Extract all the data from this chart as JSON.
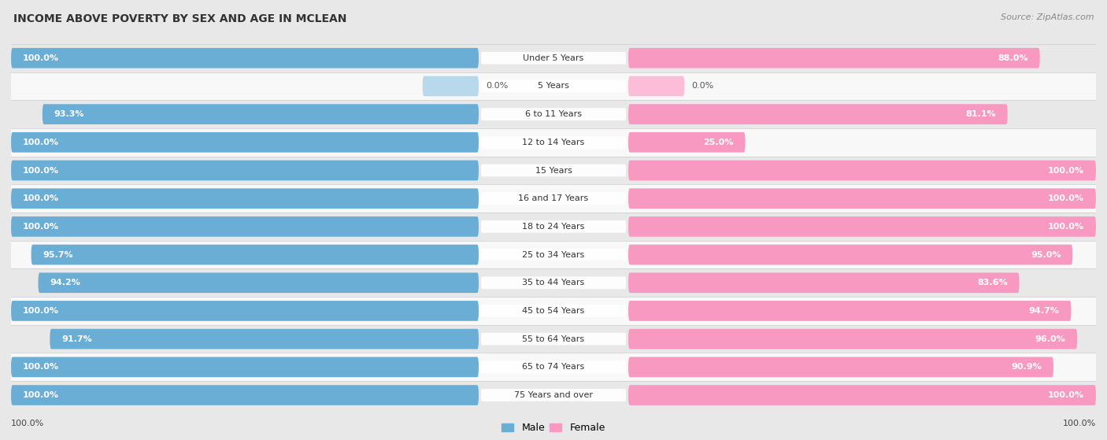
{
  "title": "INCOME ABOVE POVERTY BY SEX AND AGE IN MCLEAN",
  "source": "Source: ZipAtlas.com",
  "categories": [
    "Under 5 Years",
    "5 Years",
    "6 to 11 Years",
    "12 to 14 Years",
    "15 Years",
    "16 and 17 Years",
    "18 to 24 Years",
    "25 to 34 Years",
    "35 to 44 Years",
    "45 to 54 Years",
    "55 to 64 Years",
    "65 to 74 Years",
    "75 Years and over"
  ],
  "male": [
    100.0,
    0.0,
    93.3,
    100.0,
    100.0,
    100.0,
    100.0,
    95.7,
    94.2,
    100.0,
    91.7,
    100.0,
    100.0
  ],
  "female": [
    88.0,
    0.0,
    81.1,
    25.0,
    100.0,
    100.0,
    100.0,
    95.0,
    83.6,
    94.7,
    96.0,
    90.9,
    100.0
  ],
  "male_color": "#6aaed6",
  "female_color": "#f799c0",
  "male_zero_color": "#b8d8ec",
  "female_zero_color": "#fbbdd7",
  "row_colors": [
    "#e8e8e8",
    "#f8f8f8"
  ],
  "bar_height": 0.72,
  "title_fontsize": 10,
  "label_fontsize": 8,
  "category_fontsize": 8,
  "source_fontsize": 8
}
